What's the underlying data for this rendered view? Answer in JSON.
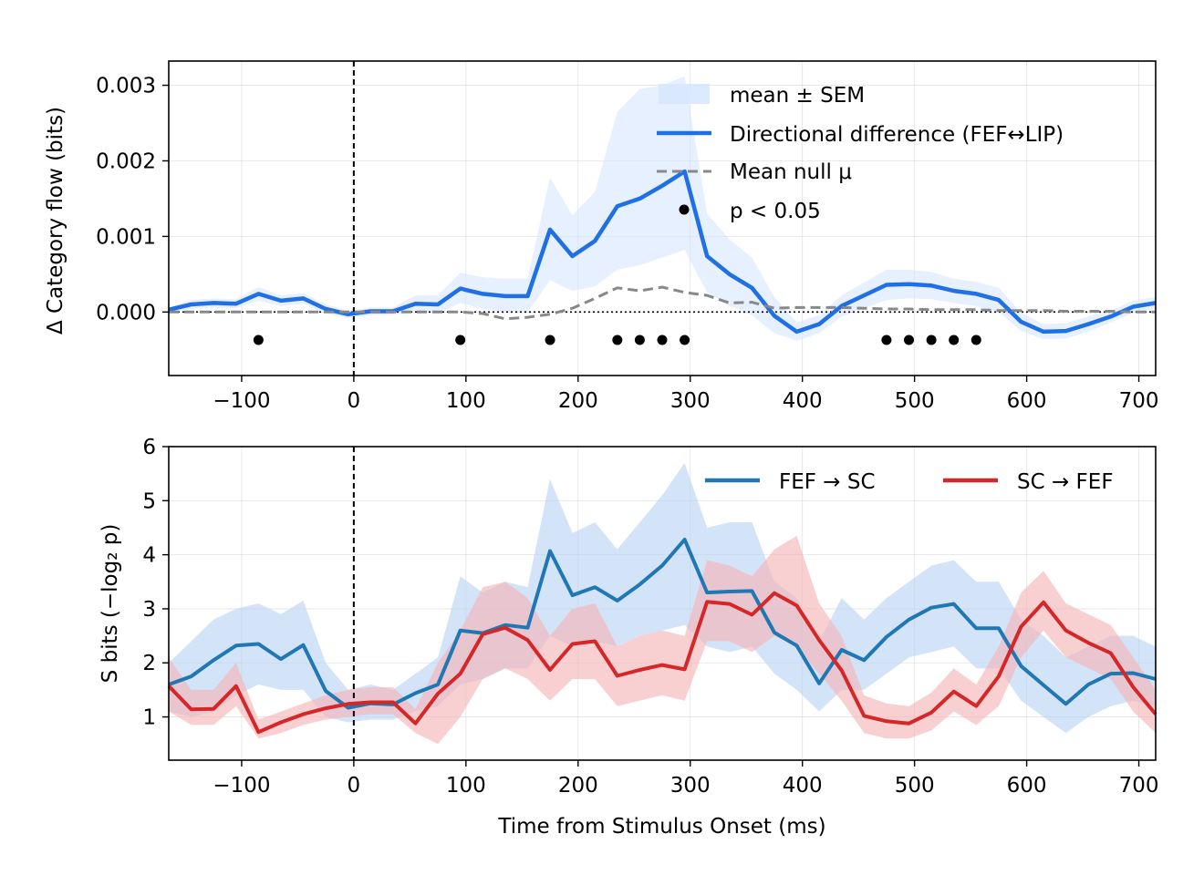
{
  "chart_data": [
    {
      "type": "line",
      "ylabel": "Δ Category flow (bits)",
      "xlabel": "",
      "xlim": [
        -165,
        715
      ],
      "ylim": [
        -0.00084,
        0.00332
      ],
      "xticks": [
        -100,
        0,
        100,
        200,
        300,
        400,
        500,
        600,
        700
      ],
      "xtick_labels": [
        "−100",
        "0",
        "100",
        "200",
        "300",
        "400",
        "500",
        "600",
        "700"
      ],
      "yticks": [
        0.0,
        0.001,
        0.002,
        0.003
      ],
      "ytick_labels": [
        "0.000",
        "0.001",
        "0.002",
        "0.003"
      ],
      "grid": true,
      "legend_position": "top-right",
      "vline_x": 0,
      "hline_y": 0,
      "x": [
        -165,
        -145,
        -125,
        -105,
        -85,
        -65,
        -45,
        -25,
        -5,
        15,
        35,
        55,
        75,
        95,
        115,
        135,
        155,
        175,
        195,
        215,
        235,
        255,
        275,
        295,
        315,
        335,
        355,
        375,
        395,
        415,
        435,
        455,
        475,
        495,
        515,
        535,
        555,
        575,
        595,
        615,
        635,
        655,
        675,
        695,
        715
      ],
      "series": [
        {
          "name": "Directional difference (FEF↔LIP)",
          "color": "#1f6fe5",
          "style": "solid",
          "values": [
            3e-05,
            0.0001,
            0.00012,
            0.00011,
            0.00024,
            0.00015,
            0.00018,
            4e-05,
            -3e-05,
            1e-05,
            1e-05,
            0.00011,
            0.0001,
            0.00031,
            0.00024,
            0.00021,
            0.00021,
            0.00109,
            0.00074,
            0.00094,
            0.0014,
            0.0015,
            0.00167,
            0.00186,
            0.00074,
            0.0005,
            0.00032,
            -5e-05,
            -0.00026,
            -0.00016,
            8e-05,
            0.00022,
            0.00036,
            0.00037,
            0.00035,
            0.00028,
            0.00024,
            0.00016,
            -0.00013,
            -0.00026,
            -0.00025,
            -0.00016,
            -6e-05,
            7e-05,
            0.00012
          ],
          "band_lower": [
            0.0,
            4e-05,
            6e-05,
            5e-05,
            0.00015,
            8e-05,
            0.00011,
            -2e-05,
            -8e-05,
            -4e-05,
            -4e-05,
            0.0,
            -2e-05,
            0.00012,
            4e-05,
            0.0,
            0.0,
            0.00042,
            0.00028,
            0.00034,
            0.00056,
            0.00062,
            0.00072,
            0.00082,
            0.00026,
            8e-05,
            -4e-05,
            -0.00028,
            -0.00038,
            -0.00028,
            -6e-05,
            5e-05,
            0.00016,
            0.00018,
            0.00017,
            0.00012,
            8e-05,
            0.0,
            -0.00025,
            -0.00036,
            -0.00035,
            -0.00026,
            -0.00014,
            -1e-05,
            4e-05
          ],
          "band_upper": [
            6e-05,
            0.00016,
            0.00018,
            0.00017,
            0.00033,
            0.00022,
            0.00025,
            0.0001,
            2e-05,
            6e-05,
            6e-05,
            0.00022,
            0.00022,
            0.00052,
            0.00046,
            0.00044,
            0.00044,
            0.00178,
            0.00128,
            0.00159,
            0.00265,
            0.00295,
            0.003,
            0.00312,
            0.0013,
            0.00096,
            0.00072,
            0.0002,
            -0.00014,
            -4e-05,
            0.00022,
            0.00039,
            0.00056,
            0.00056,
            0.00053,
            0.00044,
            0.0004,
            0.00032,
            -1e-05,
            -0.00016,
            -0.00015,
            -6e-05,
            2e-05,
            0.00015,
            0.0002
          ]
        },
        {
          "name": "Mean null μ",
          "color": "#888888",
          "style": "dashed",
          "values": [
            0.0,
            0.0,
            0.0,
            0.0,
            0.0,
            0.0,
            0.0,
            0.0,
            0.0,
            0.0,
            0.0,
            0.0,
            0.0,
            0.0,
            -2e-05,
            -9e-05,
            -7e-05,
            -3e-05,
            5e-05,
            0.00018,
            0.00032,
            0.00028,
            0.00033,
            0.00026,
            0.00022,
            0.00012,
            0.00013,
            5e-05,
            6e-05,
            6e-05,
            6e-05,
            5e-05,
            4e-05,
            4e-05,
            3e-05,
            3e-05,
            3e-05,
            2e-05,
            2e-05,
            2e-05,
            1e-05,
            1e-05,
            1e-05,
            0.0,
            0.0
          ]
        }
      ],
      "significance": {
        "name": "p < 0.05",
        "y": -0.00037,
        "x": [
          -85,
          95,
          175,
          235,
          255,
          275,
          295,
          475,
          495,
          515,
          535,
          555
        ]
      },
      "legend": {
        "band": "mean ± SEM",
        "line": "Directional difference (FEF↔LIP)",
        "null": "Mean null μ",
        "points": "p < 0.05"
      },
      "colors": {
        "band": "#d6e6ff"
      }
    },
    {
      "type": "line",
      "xlabel": "Time from Stimulus Onset (ms)",
      "ylabel": "S bits (−log₂ p)",
      "xlim": [
        -165,
        715
      ],
      "ylim": [
        0.2,
        6.0
      ],
      "xticks": [
        -100,
        0,
        100,
        200,
        300,
        400,
        500,
        600,
        700
      ],
      "xtick_labels": [
        "−100",
        "0",
        "100",
        "200",
        "300",
        "400",
        "500",
        "600",
        "700"
      ],
      "yticks": [
        1,
        2,
        3,
        4,
        5,
        6
      ],
      "ytick_labels": [
        "1",
        "2",
        "3",
        "4",
        "5",
        "6"
      ],
      "grid": true,
      "legend_position": "top-right",
      "vline_x": 0,
      "x": [
        -165,
        -145,
        -125,
        -105,
        -85,
        -65,
        -45,
        -25,
        -5,
        15,
        35,
        55,
        75,
        95,
        115,
        135,
        155,
        175,
        195,
        215,
        235,
        255,
        275,
        295,
        315,
        335,
        355,
        375,
        395,
        415,
        435,
        455,
        475,
        495,
        515,
        535,
        555,
        575,
        595,
        615,
        635,
        655,
        675,
        695,
        715
      ],
      "series": [
        {
          "name": "FEF → SC",
          "color": "#1f77b4",
          "values": [
            1.6,
            1.75,
            2.05,
            2.32,
            2.35,
            2.07,
            2.33,
            1.48,
            1.17,
            1.25,
            1.23,
            1.44,
            1.6,
            2.6,
            2.55,
            2.7,
            2.65,
            4.07,
            3.25,
            3.4,
            3.15,
            3.45,
            3.8,
            4.28,
            3.3,
            3.32,
            3.33,
            2.56,
            2.32,
            1.62,
            2.24,
            2.05,
            2.48,
            2.8,
            3.02,
            3.09,
            2.64,
            2.64,
            1.94,
            1.59,
            1.24,
            1.6,
            1.8,
            1.81,
            1.7
          ],
          "band_lower": [
            1.1,
            1.0,
            1.1,
            1.4,
            1.6,
            1.5,
            1.5,
            1.0,
            0.9,
            0.95,
            0.95,
            1.1,
            1.2,
            1.6,
            1.7,
            1.9,
            1.9,
            2.5,
            2.3,
            2.4,
            2.3,
            2.5,
            2.6,
            2.7,
            2.3,
            2.2,
            2.3,
            1.8,
            1.5,
            1.1,
            1.5,
            1.5,
            1.8,
            2.1,
            2.2,
            2.3,
            1.9,
            1.9,
            1.3,
            1.0,
            0.7,
            1.0,
            1.2,
            1.3,
            1.2
          ],
          "band_upper": [
            2.0,
            2.4,
            2.8,
            3.0,
            3.1,
            2.9,
            3.15,
            2.0,
            1.5,
            1.6,
            1.5,
            1.8,
            2.1,
            3.6,
            3.3,
            3.5,
            3.4,
            5.4,
            4.4,
            4.6,
            4.1,
            4.6,
            5.1,
            5.7,
            4.5,
            4.6,
            4.6,
            3.5,
            3.2,
            2.4,
            3.2,
            2.8,
            3.2,
            3.5,
            3.8,
            3.9,
            3.5,
            3.5,
            2.8,
            2.5,
            2.1,
            2.3,
            2.5,
            2.5,
            2.3
          ]
        },
        {
          "name": "SC → FEF",
          "color": "#d62728",
          "values": [
            1.57,
            1.14,
            1.15,
            1.57,
            0.72,
            0.9,
            1.05,
            1.16,
            1.24,
            1.27,
            1.27,
            0.88,
            1.43,
            1.8,
            2.53,
            2.65,
            2.42,
            1.87,
            2.35,
            2.4,
            1.76,
            1.87,
            1.96,
            1.88,
            3.13,
            3.09,
            2.89,
            3.29,
            3.06,
            2.42,
            1.86,
            1.02,
            0.92,
            0.88,
            1.08,
            1.47,
            1.2,
            1.75,
            2.67,
            3.12,
            2.6,
            2.37,
            2.18,
            1.55,
            1.05
          ],
          "band_lower": [
            1.1,
            0.85,
            0.85,
            1.2,
            0.6,
            0.7,
            0.85,
            0.95,
            1.0,
            1.05,
            1.05,
            0.7,
            0.5,
            1.0,
            1.7,
            1.9,
            1.7,
            1.3,
            1.7,
            1.7,
            1.2,
            1.3,
            1.4,
            1.3,
            2.4,
            2.4,
            2.2,
            2.5,
            2.3,
            1.8,
            1.3,
            0.7,
            0.6,
            0.6,
            0.75,
            1.1,
            0.85,
            1.2,
            2.1,
            2.6,
            2.1,
            1.9,
            1.7,
            1.1,
            0.7
          ],
          "band_upper": [
            2.1,
            1.5,
            1.5,
            2.0,
            0.95,
            1.1,
            1.25,
            1.4,
            1.5,
            1.55,
            1.55,
            1.15,
            2.0,
            2.6,
            3.4,
            3.5,
            3.2,
            2.5,
            3.0,
            3.1,
            2.3,
            2.5,
            2.6,
            2.5,
            3.9,
            3.8,
            3.6,
            4.1,
            4.35,
            3.1,
            2.5,
            1.4,
            1.25,
            1.2,
            1.45,
            1.9,
            1.6,
            2.3,
            3.3,
            3.7,
            3.1,
            2.9,
            2.7,
            2.1,
            1.5
          ]
        }
      ]
    }
  ]
}
